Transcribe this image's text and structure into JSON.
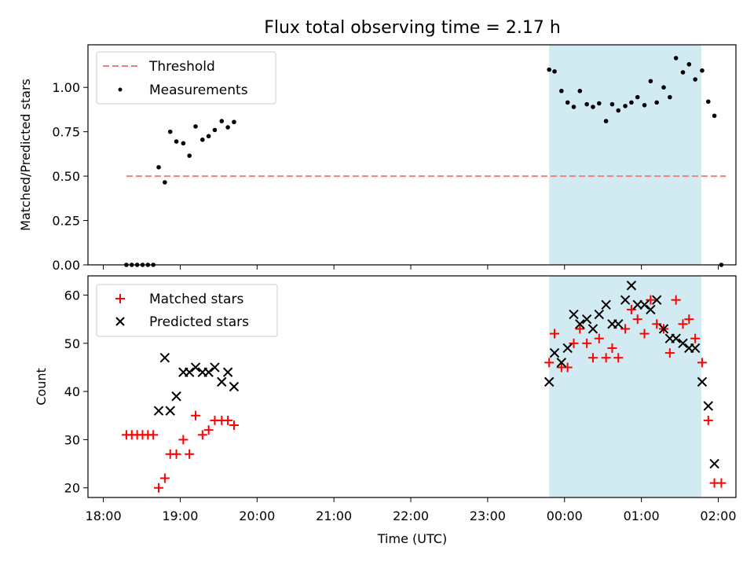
{
  "chart_data": [
    {
      "type": "scatter",
      "title": "Flux total observing time = 2.17 h",
      "xlabel": "",
      "ylabel": "Matched/Predicted stars",
      "xlim": [
        -0.2,
        8.23
      ],
      "ylim": [
        0,
        1.24
      ],
      "yticks": [
        0.0,
        0.25,
        0.5,
        0.75,
        1.0
      ],
      "ytick_labels": [
        "0.00",
        "0.25",
        "0.50",
        "0.75",
        "1.00"
      ],
      "xticks": [
        0,
        1,
        2,
        3,
        4,
        5,
        6,
        7,
        8
      ],
      "legend_position": "upper-left",
      "shaded_region": {
        "x0": 5.8,
        "x1": 7.78,
        "color": "#add8e6"
      },
      "colors": {
        "threshold": "#f08080",
        "measurements": "#000000"
      },
      "series": [
        {
          "name": "Threshold",
          "kind": "dashed-line",
          "x": [
            0.3,
            8.1
          ],
          "y": [
            0.5,
            0.5
          ]
        },
        {
          "name": "Measurements",
          "kind": "dots",
          "points": [
            [
              0.3,
              0
            ],
            [
              0.37,
              0
            ],
            [
              0.44,
              0
            ],
            [
              0.51,
              0
            ],
            [
              0.58,
              0
            ],
            [
              0.65,
              0
            ],
            [
              0.72,
              0.55
            ],
            [
              0.8,
              0.465
            ],
            [
              0.87,
              0.75
            ],
            [
              0.95,
              0.695
            ],
            [
              1.04,
              0.685
            ],
            [
              1.12,
              0.615
            ],
            [
              1.2,
              0.78
            ],
            [
              1.29,
              0.705
            ],
            [
              1.37,
              0.725
            ],
            [
              1.45,
              0.76
            ],
            [
              1.54,
              0.81
            ],
            [
              1.62,
              0.775
            ],
            [
              1.7,
              0.805
            ],
            [
              5.8,
              1.1
            ],
            [
              5.87,
              1.09
            ],
            [
              5.96,
              0.98
            ],
            [
              6.04,
              0.915
            ],
            [
              6.12,
              0.89
            ],
            [
              6.2,
              0.98
            ],
            [
              6.29,
              0.905
            ],
            [
              6.37,
              0.89
            ],
            [
              6.45,
              0.91
            ],
            [
              6.54,
              0.81
            ],
            [
              6.62,
              0.905
            ],
            [
              6.7,
              0.87
            ],
            [
              6.79,
              0.895
            ],
            [
              6.87,
              0.915
            ],
            [
              6.95,
              0.945
            ],
            [
              7.04,
              0.9
            ],
            [
              7.12,
              1.035
            ],
            [
              7.2,
              0.915
            ],
            [
              7.29,
              1.0
            ],
            [
              7.37,
              0.945
            ],
            [
              7.45,
              1.165
            ],
            [
              7.54,
              1.085
            ],
            [
              7.62,
              1.13
            ],
            [
              7.7,
              1.045
            ],
            [
              7.79,
              1.095
            ],
            [
              7.87,
              0.92
            ],
            [
              7.95,
              0.84
            ],
            [
              8.04,
              0
            ]
          ]
        }
      ]
    },
    {
      "type": "scatter",
      "title": "",
      "xlabel": "Time (UTC)",
      "ylabel": "Count",
      "xlim": [
        -0.2,
        8.23
      ],
      "ylim": [
        18,
        64
      ],
      "yticks": [
        20,
        30,
        40,
        50,
        60
      ],
      "xticks": [
        0,
        1,
        2,
        3,
        4,
        5,
        6,
        7,
        8
      ],
      "xtick_labels": [
        "18:00",
        "19:00",
        "20:00",
        "21:00",
        "22:00",
        "23:00",
        "00:00",
        "01:00",
        "02:00"
      ],
      "legend_position": "upper-left",
      "shaded_region": {
        "x0": 5.8,
        "x1": 7.78,
        "color": "#add8e6"
      },
      "colors": {
        "matched": "#ff0000",
        "predicted": "#000000"
      },
      "series": [
        {
          "name": "Matched stars",
          "marker": "plus",
          "points": [
            [
              0.3,
              31
            ],
            [
              0.37,
              31
            ],
            [
              0.44,
              31
            ],
            [
              0.51,
              31
            ],
            [
              0.58,
              31
            ],
            [
              0.65,
              31
            ],
            [
              0.72,
              20
            ],
            [
              0.8,
              22
            ],
            [
              0.87,
              27
            ],
            [
              0.95,
              27
            ],
            [
              1.04,
              30
            ],
            [
              1.12,
              27
            ],
            [
              1.2,
              35
            ],
            [
              1.29,
              31
            ],
            [
              1.37,
              32
            ],
            [
              1.45,
              34
            ],
            [
              1.54,
              34
            ],
            [
              1.62,
              34
            ],
            [
              1.7,
              33
            ],
            [
              5.8,
              46
            ],
            [
              5.87,
              52
            ],
            [
              5.96,
              45
            ],
            [
              6.04,
              45
            ],
            [
              6.12,
              50
            ],
            [
              6.2,
              53
            ],
            [
              6.29,
              50
            ],
            [
              6.37,
              47
            ],
            [
              6.45,
              51
            ],
            [
              6.54,
              47
            ],
            [
              6.62,
              49
            ],
            [
              6.7,
              47
            ],
            [
              6.79,
              53
            ],
            [
              6.87,
              57
            ],
            [
              6.95,
              55
            ],
            [
              7.04,
              52
            ],
            [
              7.12,
              59
            ],
            [
              7.2,
              54
            ],
            [
              7.29,
              53
            ],
            [
              7.37,
              48
            ],
            [
              7.45,
              59
            ],
            [
              7.54,
              54
            ],
            [
              7.62,
              55
            ],
            [
              7.7,
              51
            ],
            [
              7.79,
              46
            ],
            [
              7.87,
              34
            ],
            [
              7.95,
              21
            ],
            [
              8.04,
              21
            ]
          ]
        },
        {
          "name": "Predicted stars",
          "marker": "x",
          "points": [
            [
              0.72,
              36
            ],
            [
              0.8,
              47
            ],
            [
              0.87,
              36
            ],
            [
              0.95,
              39
            ],
            [
              1.04,
              44
            ],
            [
              1.12,
              44
            ],
            [
              1.2,
              45
            ],
            [
              1.29,
              44
            ],
            [
              1.37,
              44
            ],
            [
              1.45,
              45
            ],
            [
              1.54,
              42
            ],
            [
              1.62,
              44
            ],
            [
              1.7,
              41
            ],
            [
              5.8,
              42
            ],
            [
              5.87,
              48
            ],
            [
              5.96,
              46
            ],
            [
              6.04,
              49
            ],
            [
              6.12,
              56
            ],
            [
              6.2,
              54
            ],
            [
              6.29,
              55
            ],
            [
              6.37,
              53
            ],
            [
              6.45,
              56
            ],
            [
              6.54,
              58
            ],
            [
              6.62,
              54
            ],
            [
              6.7,
              54
            ],
            [
              6.79,
              59
            ],
            [
              6.87,
              62
            ],
            [
              6.95,
              58
            ],
            [
              7.04,
              58
            ],
            [
              7.12,
              57
            ],
            [
              7.2,
              59
            ],
            [
              7.29,
              53
            ],
            [
              7.37,
              51
            ],
            [
              7.45,
              51
            ],
            [
              7.54,
              50
            ],
            [
              7.62,
              49
            ],
            [
              7.7,
              49
            ],
            [
              7.79,
              42
            ],
            [
              7.87,
              37
            ],
            [
              7.95,
              25
            ]
          ]
        }
      ]
    }
  ]
}
